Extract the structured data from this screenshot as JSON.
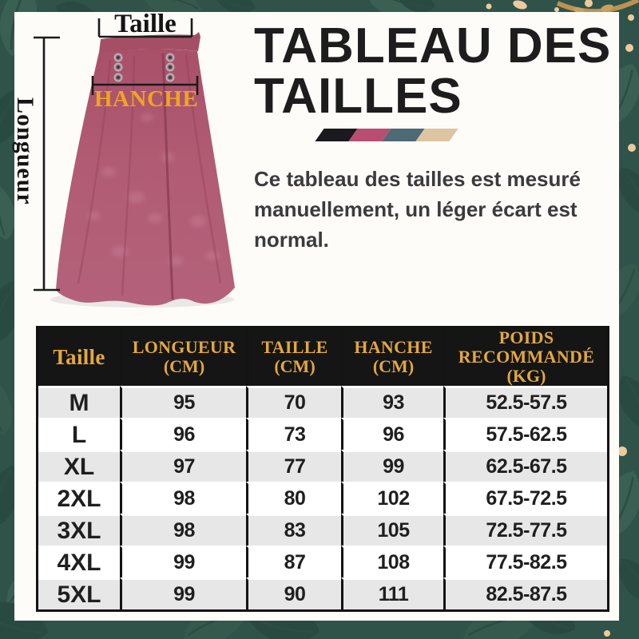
{
  "figure": {
    "waist_label": "Taille",
    "length_label": "Longueur",
    "hip_label": "HANCHE"
  },
  "header": {
    "title_line1": "TABLEAU DES",
    "title_line2": "TAILLES",
    "description": "Ce tableau des tailles est mesuré manuellement, un léger écart est normal.",
    "swatches": [
      {
        "name": "black",
        "color": "#1a191d"
      },
      {
        "name": "rose",
        "color": "#b84f72"
      },
      {
        "name": "teal",
        "color": "#4d6a75"
      },
      {
        "name": "beige",
        "color": "#dcc5a0"
      }
    ]
  },
  "size_table": {
    "columns": [
      {
        "label": "Taille",
        "unit": ""
      },
      {
        "label": "LONGUEUR",
        "unit": "(CM)"
      },
      {
        "label": "TAILLE",
        "unit": "(CM)"
      },
      {
        "label": "HANCHE",
        "unit": "(CM)"
      },
      {
        "label": "POIDS RECOMMANDÉ",
        "unit": "(KG)"
      }
    ],
    "rows": [
      [
        "M",
        "95",
        "70",
        "93",
        "52.5-57.5"
      ],
      [
        "L",
        "96",
        "73",
        "96",
        "57.5-62.5"
      ],
      [
        "XL",
        "97",
        "77",
        "99",
        "62.5-67.5"
      ],
      [
        "2XL",
        "98",
        "80",
        "102",
        "67.5-72.5"
      ],
      [
        "3XL",
        "98",
        "83",
        "105",
        "72.5-77.5"
      ],
      [
        "4XL",
        "99",
        "87",
        "108",
        "77.5-82.5"
      ],
      [
        "5XL",
        "99",
        "90",
        "111",
        "82.5-87.5"
      ]
    ]
  },
  "colors": {
    "background_green": "#2f5348",
    "leaf_light": "#3a6053",
    "leaf_dark": "#294a41",
    "accent_gold_table": "#e2a83e",
    "hip_label_gold": "#f0a422",
    "table_header_bg": "#151515",
    "row_alt_gray": "#e7e7e7",
    "skirt_rose": "#b15c74",
    "panel_white": "#fdfcf9",
    "deco_beige": "#eccaa0"
  }
}
